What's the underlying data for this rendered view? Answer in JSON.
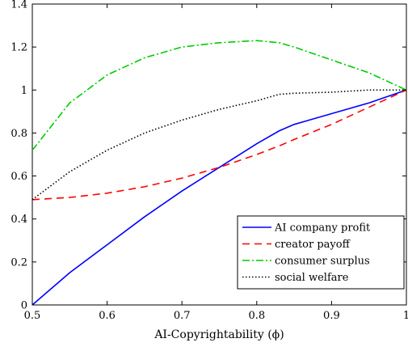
{
  "chart_data": {
    "type": "line",
    "xlabel": "AI-Copyrightability (ϕ)",
    "ylabel": "",
    "title": "",
    "xlim": [
      0.5,
      1.0
    ],
    "ylim": [
      0,
      1.4
    ],
    "x_ticks": [
      0.5,
      0.6,
      0.7,
      0.8,
      0.9,
      1.0
    ],
    "x_tick_labels": [
      "0.5",
      "0.6",
      "0.7",
      "0.8",
      "0.9",
      "1"
    ],
    "y_ticks": [
      0,
      0.2,
      0.4,
      0.6,
      0.8,
      1.0,
      1.2,
      1.4
    ],
    "y_tick_labels": [
      "0",
      "0.2",
      "0.4",
      "0.6",
      "0.8",
      "1",
      "1.2",
      "1.4"
    ],
    "grid": false,
    "legend_position": "lower-right",
    "series": [
      {
        "name": "AI company profit",
        "color": "#0000ff",
        "style": "solid",
        "x": [
          0.5,
          0.55,
          0.6,
          0.65,
          0.7,
          0.75,
          0.8,
          0.83,
          0.85,
          0.9,
          0.95,
          1.0
        ],
        "y": [
          0.0,
          0.15,
          0.28,
          0.41,
          0.53,
          0.64,
          0.75,
          0.81,
          0.84,
          0.89,
          0.94,
          1.0
        ]
      },
      {
        "name": "creator payoff",
        "color": "#ff0000",
        "style": "dashed",
        "x": [
          0.5,
          0.55,
          0.6,
          0.65,
          0.7,
          0.75,
          0.8,
          0.83,
          0.85,
          0.9,
          0.95,
          1.0
        ],
        "y": [
          0.49,
          0.5,
          0.52,
          0.55,
          0.59,
          0.64,
          0.7,
          0.74,
          0.77,
          0.84,
          0.92,
          1.0
        ]
      },
      {
        "name": "consumer surplus",
        "color": "#00cc00",
        "style": "dashdot",
        "x": [
          0.5,
          0.55,
          0.6,
          0.65,
          0.7,
          0.75,
          0.8,
          0.83,
          0.85,
          0.9,
          0.95,
          1.0
        ],
        "y": [
          0.72,
          0.94,
          1.07,
          1.15,
          1.2,
          1.22,
          1.23,
          1.22,
          1.2,
          1.14,
          1.08,
          1.0
        ]
      },
      {
        "name": "social welfare",
        "color": "#000000",
        "style": "dotted",
        "x": [
          0.5,
          0.55,
          0.6,
          0.65,
          0.7,
          0.75,
          0.8,
          0.83,
          0.85,
          0.9,
          0.95,
          1.0
        ],
        "y": [
          0.49,
          0.62,
          0.72,
          0.8,
          0.86,
          0.91,
          0.95,
          0.98,
          0.985,
          0.99,
          1.0,
          1.0
        ]
      }
    ]
  }
}
